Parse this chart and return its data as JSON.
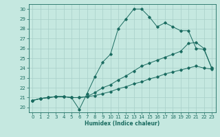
{
  "title": "",
  "xlabel": "Humidex (Indice chaleur)",
  "bg_color": "#c5e8e0",
  "grid_color": "#a8cfc8",
  "line_color": "#1a6b60",
  "xlim": [
    -0.5,
    23.5
  ],
  "ylim": [
    19.5,
    30.5
  ],
  "xticks": [
    0,
    1,
    2,
    3,
    4,
    5,
    6,
    7,
    8,
    9,
    10,
    11,
    12,
    13,
    14,
    15,
    16,
    17,
    18,
    19,
    20,
    21,
    22,
    23
  ],
  "yticks": [
    20,
    21,
    22,
    23,
    24,
    25,
    26,
    27,
    28,
    29,
    30
  ],
  "series1_x": [
    0,
    1,
    2,
    3,
    4,
    5,
    6,
    7,
    8,
    9,
    10,
    11,
    12,
    13,
    14,
    15,
    16,
    17,
    18,
    19,
    20,
    21,
    22,
    23
  ],
  "series1_y": [
    20.7,
    20.9,
    21.0,
    21.1,
    21.1,
    21.0,
    19.8,
    21.4,
    23.1,
    24.6,
    25.4,
    28.0,
    29.0,
    30.0,
    30.0,
    29.2,
    28.2,
    28.6,
    28.2,
    27.8,
    27.8,
    26.0,
    25.9,
    24.0
  ],
  "series2_x": [
    0,
    1,
    2,
    3,
    4,
    5,
    6,
    7,
    8,
    9,
    10,
    11,
    12,
    13,
    14,
    15,
    16,
    17,
    18,
    19,
    20,
    21,
    22,
    23
  ],
  "series2_y": [
    20.7,
    20.9,
    21.0,
    21.1,
    21.1,
    21.0,
    21.0,
    21.1,
    21.5,
    22.0,
    22.3,
    22.8,
    23.2,
    23.7,
    24.2,
    24.5,
    24.8,
    25.1,
    25.4,
    25.7,
    26.5,
    26.6,
    26.0,
    24.0
  ],
  "series3_x": [
    0,
    1,
    2,
    3,
    4,
    5,
    6,
    7,
    8,
    9,
    10,
    11,
    12,
    13,
    14,
    15,
    16,
    17,
    18,
    19,
    20,
    21,
    22,
    23
  ],
  "series3_y": [
    20.7,
    20.9,
    21.0,
    21.1,
    21.1,
    21.0,
    21.0,
    21.1,
    21.2,
    21.4,
    21.6,
    21.9,
    22.1,
    22.4,
    22.6,
    22.9,
    23.1,
    23.4,
    23.6,
    23.8,
    24.0,
    24.2,
    24.0,
    23.9
  ]
}
